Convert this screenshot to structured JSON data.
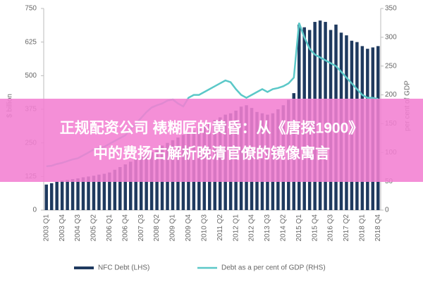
{
  "chart_data": {
    "type": "bar_line",
    "ylabel": "$ billion",
    "y2label": "per cent of GDP",
    "categories": [
      "2003 Q1",
      null,
      null,
      "2003 Q4",
      null,
      null,
      "2004 Q3",
      null,
      null,
      "2005 Q2",
      null,
      null,
      "2006 Q1",
      null,
      null,
      "2006 Q4",
      null,
      null,
      "2007 Q3",
      null,
      null,
      "2008 Q2",
      null,
      null,
      "2009 Q1",
      null,
      null,
      "2009 Q4",
      null,
      null,
      "2010 Q3",
      null,
      null,
      "2011 Q2",
      null,
      null,
      "2012 Q1",
      null,
      null,
      "2012 Q4",
      null,
      null,
      "2013 Q3",
      null,
      null,
      "2014 Q2",
      null,
      null,
      "2015 Q1",
      null,
      null,
      "2015 Q4",
      null,
      null,
      "2016 Q3",
      null,
      null,
      "2017 Q2",
      null,
      null,
      "2018 Q1",
      null,
      null,
      "2018 Q4"
    ],
    "series": [
      {
        "name": "NFC Debt (LHS)",
        "type": "bar",
        "color": "#1f3a5f",
        "values": [
          95,
          100,
          105,
          110,
          112,
          115,
          118,
          122,
          125,
          128,
          132,
          135,
          140,
          150,
          160,
          170,
          180,
          190,
          200,
          210,
          215,
          225,
          240,
          250,
          260,
          270,
          280,
          285,
          295,
          305,
          315,
          325,
          335,
          345,
          355,
          360,
          370,
          385,
          390,
          380,
          365,
          360,
          355,
          360,
          375,
          390,
          410,
          435,
          690,
          680,
          670,
          700,
          705,
          700,
          670,
          690,
          660,
          650,
          630,
          625,
          610,
          600,
          605,
          610
        ]
      },
      {
        "name": "Debt as a per cent of GDP (RHS)",
        "type": "line",
        "axis": "y2",
        "color": "#5bc8c8",
        "values": [
          76,
          77,
          80,
          82,
          85,
          88,
          90,
          95,
          100,
          105,
          108,
          110,
          115,
          120,
          125,
          130,
          140,
          150,
          160,
          170,
          178,
          182,
          185,
          190,
          192,
          185,
          180,
          195,
          200,
          200,
          205,
          210,
          215,
          220,
          225,
          222,
          210,
          200,
          195,
          200,
          205,
          210,
          205,
          210,
          212,
          215,
          220,
          230,
          325,
          300,
          280,
          270,
          265,
          260,
          255,
          250,
          240,
          230,
          220,
          210,
          200,
          195,
          195,
          193
        ]
      }
    ],
    "ylim": [
      0,
      750
    ],
    "yticks": [
      0,
      125,
      250,
      375,
      500,
      625,
      750
    ],
    "y2lim": [
      0,
      350
    ],
    "y2ticks": [
      0,
      50,
      100,
      150,
      200,
      250,
      300,
      350
    ],
    "legend": "bottom"
  },
  "banner": {
    "lines": [
      "正规配资公司 裱糊匠的黄昏：从《唐探1900》",
      "中的费扬古解析晚清官僚的镜像寓言"
    ]
  }
}
